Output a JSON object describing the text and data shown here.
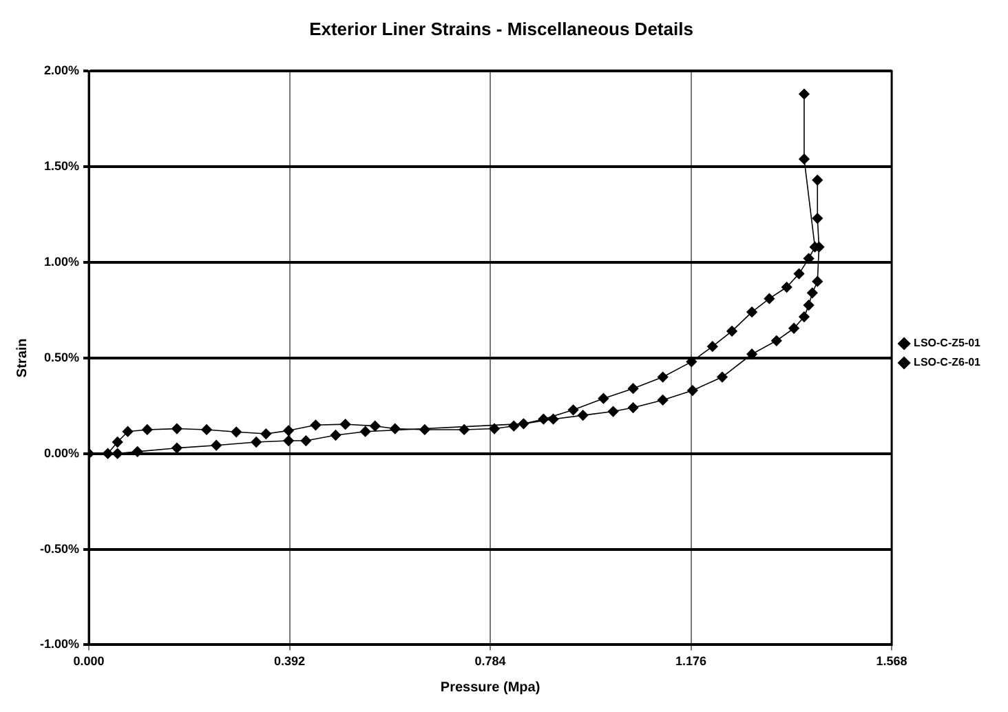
{
  "chart_data": {
    "type": "line",
    "title": "Exterior Liner Strains - Miscellaneous Details",
    "xlabel": "Pressure (Mpa)",
    "ylabel": "Strain",
    "xlim": [
      0,
      1.568
    ],
    "xticks": [
      {
        "value": 0,
        "label": "0.000"
      },
      {
        "value": 0.392,
        "label": "0.392"
      },
      {
        "value": 0.784,
        "label": "0.784"
      },
      {
        "value": 1.176,
        "label": "1.176"
      },
      {
        "value": 1.568,
        "label": "1.568"
      }
    ],
    "ylim": [
      -1,
      2
    ],
    "yticks": [
      {
        "value": -1,
        "label": "-1.00%"
      },
      {
        "value": -0.5,
        "label": "-0.50%"
      },
      {
        "value": 0,
        "label": "0.00%"
      },
      {
        "value": 0.5,
        "label": "0.50%"
      },
      {
        "value": 1,
        "label": "1.00%"
      },
      {
        "value": 1.5,
        "label": "1.50%"
      },
      {
        "value": 2,
        "label": "2.00%"
      }
    ],
    "grid": true,
    "legend": "right",
    "marker": "diamond",
    "line_style": "solid",
    "series": [
      {
        "name": "LSO-C-Z5-01",
        "color": "#000000",
        "x": [
          0,
          0.037,
          0.056,
          0.076,
          0.114,
          0.172,
          0.23,
          0.288,
          0.346,
          0.39,
          0.443,
          0.501,
          0.559,
          0.598,
          0.656,
          0.733,
          0.792,
          0.83,
          0.888,
          0.946,
          1.005,
          1.063,
          1.121,
          1.177,
          1.218,
          1.256,
          1.295,
          1.329,
          1.363,
          1.387,
          1.406,
          1.418,
          1.397,
          1.397
        ],
        "values": [
          0,
          0,
          0.06,
          0.115,
          0.125,
          0.13,
          0.125,
          0.113,
          0.103,
          0.12,
          0.149,
          0.153,
          0.144,
          0.13,
          0.125,
          0.125,
          0.13,
          0.144,
          0.18,
          0.228,
          0.288,
          0.34,
          0.4,
          0.48,
          0.56,
          0.64,
          0.74,
          0.81,
          0.87,
          0.94,
          1.02,
          1.08,
          1.54,
          1.88
        ]
      },
      {
        "name": "LSO-C-Z6-01",
        "color": "#000000",
        "x": [
          0,
          0.056,
          0.095,
          0.172,
          0.249,
          0.327,
          0.39,
          0.424,
          0.482,
          0.54,
          0.849,
          0.907,
          0.965,
          1.024,
          1.063,
          1.121,
          1.179,
          1.237,
          1.295,
          1.343,
          1.377,
          1.397,
          1.406,
          1.413,
          1.423,
          1.426,
          1.423,
          1.423
        ],
        "values": [
          0,
          0,
          0.01,
          0.029,
          0.043,
          0.06,
          0.067,
          0.067,
          0.096,
          0.115,
          0.156,
          0.18,
          0.2,
          0.22,
          0.24,
          0.28,
          0.33,
          0.4,
          0.52,
          0.59,
          0.655,
          0.715,
          0.776,
          0.84,
          0.9,
          1.08,
          1.23,
          1.43
        ]
      }
    ]
  }
}
